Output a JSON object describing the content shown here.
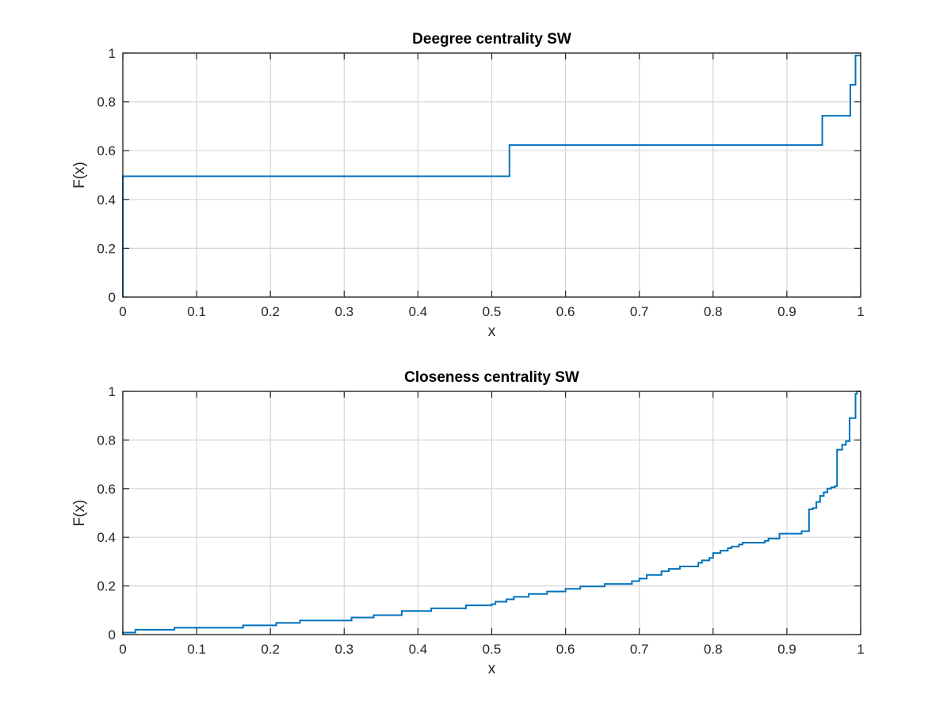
{
  "colors": {
    "line": "#0072BD",
    "grid": "#d6d6d6",
    "axis": "#262626"
  },
  "chart_data": [
    {
      "type": "line",
      "step": true,
      "title": "Deegree centrality SW",
      "xlabel": "x",
      "ylabel": "F(x)",
      "xlim": [
        0,
        1
      ],
      "ylim": [
        0,
        1
      ],
      "xticks": [
        0,
        0.1,
        0.2,
        0.3,
        0.4,
        0.5,
        0.6,
        0.7,
        0.8,
        0.9,
        1
      ],
      "xtick_labels": [
        "0",
        "0.1",
        "0.2",
        "0.3",
        "0.4",
        "0.5",
        "0.6",
        "0.7",
        "0.8",
        "0.9",
        "1"
      ],
      "yticks": [
        0,
        0.2,
        0.4,
        0.6,
        0.8,
        1
      ],
      "ytick_labels": [
        "0",
        "0.2",
        "0.4",
        "0.6",
        "0.8",
        "1"
      ],
      "grid": true,
      "series": [
        {
          "x": [
            0,
            0,
            0.524,
            0.948,
            0.986,
            0.993,
            1
          ],
          "y": [
            0,
            0.495,
            0.623,
            0.743,
            0.87,
            0.99,
            0.99
          ]
        }
      ]
    },
    {
      "type": "line",
      "step": true,
      "title": "Closeness centrality SW",
      "xlabel": "x",
      "ylabel": "F(x)",
      "xlim": [
        0,
        1
      ],
      "ylim": [
        0,
        1
      ],
      "xticks": [
        0,
        0.1,
        0.2,
        0.3,
        0.4,
        0.5,
        0.6,
        0.7,
        0.8,
        0.9,
        1
      ],
      "xtick_labels": [
        "0",
        "0.1",
        "0.2",
        "0.3",
        "0.4",
        "0.5",
        "0.6",
        "0.7",
        "0.8",
        "0.9",
        "1"
      ],
      "yticks": [
        0,
        0.2,
        0.4,
        0.6,
        0.8,
        1
      ],
      "ytick_labels": [
        "0",
        "0.2",
        "0.4",
        "0.6",
        "0.8",
        "1"
      ],
      "grid": true,
      "series": [
        {
          "x": [
            0,
            0,
            0.017,
            0.07,
            0.163,
            0.208,
            0.24,
            0.31,
            0.34,
            0.378,
            0.418,
            0.465,
            0.5,
            0.505,
            0.52,
            0.53,
            0.55,
            0.575,
            0.6,
            0.62,
            0.653,
            0.69,
            0.7,
            0.71,
            0.73,
            0.74,
            0.755,
            0.78,
            0.785,
            0.795,
            0.8,
            0.81,
            0.82,
            0.825,
            0.835,
            0.84,
            0.87,
            0.875,
            0.89,
            0.92,
            0.93,
            0.935,
            0.94,
            0.945,
            0.95,
            0.955,
            0.96,
            0.965,
            0.968,
            0.975,
            0.98,
            0.985,
            0.993,
            0.995,
            1
          ],
          "y": [
            0,
            0.008,
            0.02,
            0.028,
            0.038,
            0.048,
            0.058,
            0.07,
            0.08,
            0.097,
            0.108,
            0.12,
            0.125,
            0.135,
            0.145,
            0.155,
            0.167,
            0.177,
            0.188,
            0.198,
            0.208,
            0.22,
            0.23,
            0.245,
            0.26,
            0.27,
            0.28,
            0.295,
            0.305,
            0.315,
            0.335,
            0.345,
            0.355,
            0.362,
            0.37,
            0.378,
            0.385,
            0.395,
            0.415,
            0.425,
            0.515,
            0.52,
            0.545,
            0.57,
            0.585,
            0.6,
            0.605,
            0.61,
            0.76,
            0.78,
            0.795,
            0.89,
            0.99,
            1,
            1
          ]
        }
      ]
    }
  ]
}
